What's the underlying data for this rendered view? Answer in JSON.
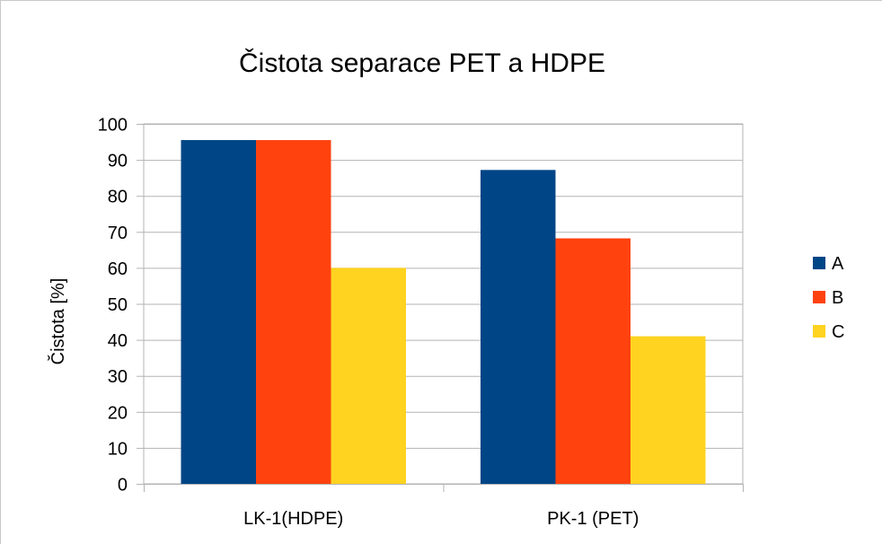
{
  "chart_data": {
    "type": "bar",
    "title": "Čistota separace PET a HDPE",
    "xlabel": "",
    "ylabel": "Čistota [%]",
    "categories": [
      "LK-1(HDPE)",
      "PK-1 (PET)"
    ],
    "series": [
      {
        "name": "A",
        "color": "#004586",
        "values": [
          95.5,
          87.2
        ]
      },
      {
        "name": "B",
        "color": "#ff420e",
        "values": [
          95.5,
          68.2
        ]
      },
      {
        "name": "C",
        "color": "#ffd320",
        "values": [
          60.0,
          41.0
        ]
      }
    ],
    "ylim": [
      0,
      100
    ],
    "yticks": [
      0,
      10,
      20,
      30,
      40,
      50,
      60,
      70,
      80,
      90,
      100
    ],
    "grid": true,
    "legend": "right"
  }
}
